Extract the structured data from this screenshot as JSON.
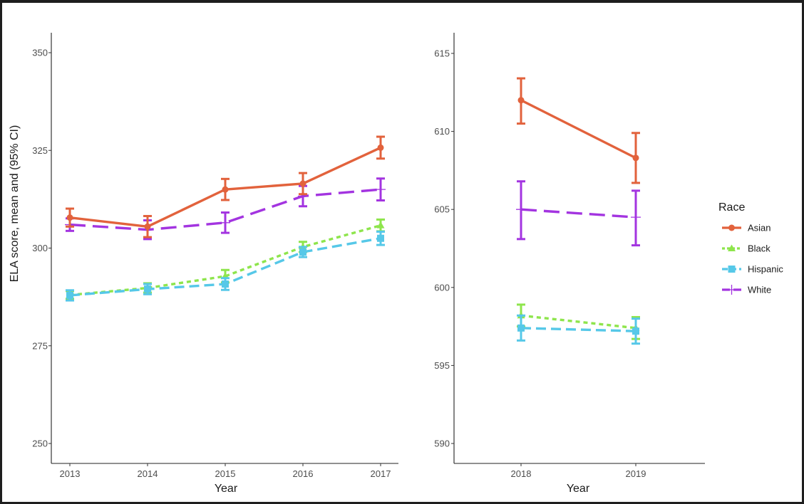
{
  "chart_data": [
    {
      "type": "line",
      "title": "",
      "xlabel": "Year",
      "ylabel": "ELA score, mean and (95% CI)",
      "x": [
        "2013",
        "2014",
        "2015",
        "2016",
        "2017"
      ],
      "ylim": [
        245,
        355
      ],
      "yticks": [
        "250",
        "275",
        "300",
        "325",
        "350"
      ],
      "grid": false,
      "series": [
        {
          "name": "Asian",
          "color": "#E2623C",
          "dash": "solid",
          "marker": "circle",
          "values": [
            307.8,
            305.5,
            315.0,
            316.5,
            325.7
          ],
          "ci_low": [
            305.5,
            302.8,
            312.3,
            313.8,
            322.9
          ],
          "ci_high": [
            310.1,
            308.2,
            317.7,
            319.2,
            328.5
          ]
        },
        {
          "name": "Black",
          "color": "#8EE54C",
          "dash": "dotted",
          "marker": "triangle",
          "values": [
            288.0,
            289.8,
            292.8,
            300.3,
            305.8
          ],
          "ci_low": [
            287.0,
            288.6,
            291.2,
            299.0,
            304.3
          ],
          "ci_high": [
            289.0,
            291.0,
            294.4,
            301.6,
            307.3
          ]
        },
        {
          "name": "Hispanic",
          "color": "#56C8E8",
          "dash": "dashed",
          "marker": "square",
          "values": [
            287.9,
            289.5,
            290.8,
            299.0,
            302.5
          ],
          "ci_low": [
            286.6,
            288.2,
            289.3,
            297.7,
            300.8
          ],
          "ci_high": [
            289.2,
            290.8,
            292.3,
            300.3,
            304.2
          ]
        },
        {
          "name": "White",
          "color": "#A334E0",
          "dash": "longdash",
          "marker": "plus",
          "values": [
            306.0,
            304.7,
            306.5,
            313.3,
            315.0
          ],
          "ci_low": [
            304.4,
            302.3,
            303.9,
            310.7,
            312.2
          ],
          "ci_high": [
            307.6,
            307.1,
            309.1,
            315.9,
            317.8
          ]
        }
      ]
    },
    {
      "type": "line",
      "title": "",
      "xlabel": "Year",
      "ylabel": "",
      "x": [
        "2018",
        "2019"
      ],
      "ylim": [
        589,
        616
      ],
      "yticks": [
        "590",
        "595",
        "600",
        "605",
        "610",
        "615"
      ],
      "grid": false,
      "series": [
        {
          "name": "Asian",
          "color": "#E2623C",
          "dash": "solid",
          "marker": "circle",
          "values": [
            612.0,
            608.3
          ],
          "ci_low": [
            610.5,
            606.7
          ],
          "ci_high": [
            613.4,
            609.9
          ]
        },
        {
          "name": "Black",
          "color": "#8EE54C",
          "dash": "dotted",
          "marker": "triangle",
          "values": [
            598.2,
            597.4
          ],
          "ci_low": [
            597.5,
            596.7
          ],
          "ci_high": [
            598.9,
            598.1
          ]
        },
        {
          "name": "Hispanic",
          "color": "#56C8E8",
          "dash": "dashed",
          "marker": "square",
          "values": [
            597.4,
            597.2
          ],
          "ci_low": [
            596.6,
            596.4
          ],
          "ci_high": [
            598.2,
            598.0
          ]
        },
        {
          "name": "White",
          "color": "#A334E0",
          "dash": "longdash",
          "marker": "plus",
          "values": [
            605.0,
            604.5
          ],
          "ci_low": [
            603.1,
            602.7
          ],
          "ci_high": [
            606.8,
            606.2
          ]
        }
      ]
    }
  ],
  "legend": {
    "title": "Race",
    "placement": "right",
    "items": [
      {
        "label": "Asian",
        "color": "#E2623C",
        "dash": "solid",
        "marker": "circle"
      },
      {
        "label": "Black",
        "color": "#8EE54C",
        "dash": "dotted",
        "marker": "triangle"
      },
      {
        "label": "Hispanic",
        "color": "#56C8E8",
        "dash": "dashed",
        "marker": "square"
      },
      {
        "label": "White",
        "color": "#A334E0",
        "dash": "longdash",
        "marker": "plus"
      }
    ]
  }
}
